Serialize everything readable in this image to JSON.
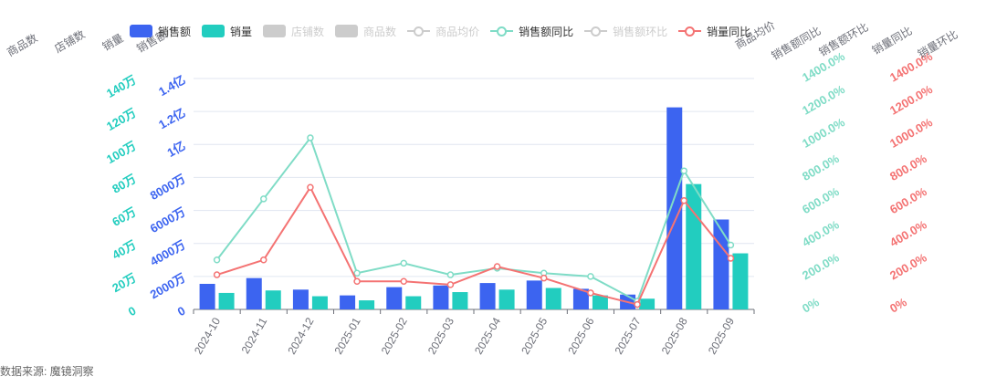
{
  "source": "数据来源: 魔镜洞察",
  "legend": [
    {
      "label": "销售额",
      "kind": "bar",
      "color": "#3c64f0",
      "active": true
    },
    {
      "label": "销量",
      "kind": "bar",
      "color": "#22cdbf",
      "active": true
    },
    {
      "label": "店铺数",
      "kind": "bar",
      "color": "#cccccc",
      "active": false
    },
    {
      "label": "商品数",
      "kind": "bar",
      "color": "#cccccc",
      "active": false
    },
    {
      "label": "商品均价",
      "kind": "line",
      "color": "#cccccc",
      "active": false
    },
    {
      "label": "销售额同比",
      "kind": "line",
      "color": "#7fdcc6",
      "active": true
    },
    {
      "label": "销售额环比",
      "kind": "line",
      "color": "#cccccc",
      "active": false
    },
    {
      "label": "销量同比",
      "kind": "line",
      "color": "#f47373",
      "active": true
    }
  ],
  "chart_data": {
    "type": "bar",
    "categories": [
      "2024-10",
      "2024-11",
      "2024-12",
      "2025-01",
      "2025-02",
      "2025-03",
      "2025-04",
      "2025-05",
      "2025-06",
      "2025-07",
      "2025-08",
      "2025-09"
    ],
    "series": [
      {
        "name": "销售额",
        "type": "bar",
        "axis": "销售额",
        "color": "#3c64f0",
        "values": [
          15500000,
          19000000,
          12000000,
          8500000,
          13500000,
          14500000,
          16000000,
          17500000,
          12500000,
          9000000,
          122500000,
          54500000
        ]
      },
      {
        "name": "销量",
        "type": "bar",
        "axis": "销量",
        "color": "#22cdbf",
        "values": [
          100000,
          115000,
          80000,
          55000,
          80000,
          105000,
          120000,
          130000,
          85000,
          65000,
          760000,
          340000
        ]
      },
      {
        "name": "销售额同比",
        "type": "line",
        "axis": "销售额同比",
        "color": "#7fdcc6",
        "values": [
          300,
          670,
          1040,
          220,
          280,
          210,
          250,
          220,
          200,
          50,
          840,
          390
        ]
      },
      {
        "name": "销量同比",
        "type": "line",
        "axis": "销量同比",
        "color": "#f47373",
        "values": [
          210,
          300,
          740,
          170,
          170,
          150,
          260,
          190,
          100,
          30,
          660,
          310
        ]
      }
    ],
    "axes": {
      "销售额": {
        "title": "销售额",
        "color": "#3c64f0",
        "min": 0,
        "max": 140000000,
        "ticks": [
          "0",
          "2000万",
          "4000万",
          "6000万",
          "8000万",
          "1亿",
          "1.2亿",
          "1.4亿"
        ]
      },
      "销量": {
        "title": "销量",
        "color": "#22cdbf",
        "min": 0,
        "max": 1400000,
        "ticks": [
          "0",
          "20万",
          "40万",
          "60万",
          "80万",
          "100万",
          "120万",
          "140万"
        ]
      },
      "店铺数": {
        "title": "店铺数"
      },
      "商品数": {
        "title": "商品数"
      },
      "商品均价": {
        "title": "商品均价"
      },
      "销售额同比": {
        "title": "销售额同比",
        "color": "#7fdcc6",
        "min": 0,
        "max": 1400,
        "ticks": [
          "0%",
          "200.0%",
          "400.0%",
          "600.0%",
          "800.0%",
          "1000.0%",
          "1200.0%",
          "1400.0%"
        ]
      },
      "销售额环比": {
        "title": "销售额环比"
      },
      "销量同比": {
        "title": "销量同比",
        "color": "#f47373",
        "min": 0,
        "max": 1400,
        "ticks": [
          "0%",
          "200.0%",
          "400.0%",
          "600.0%",
          "800.0%",
          "1000.0%",
          "1200.0%",
          "1400.0%"
        ]
      },
      "销量环比": {
        "title": "销量环比"
      }
    },
    "grid": true,
    "legend_position": "top"
  }
}
